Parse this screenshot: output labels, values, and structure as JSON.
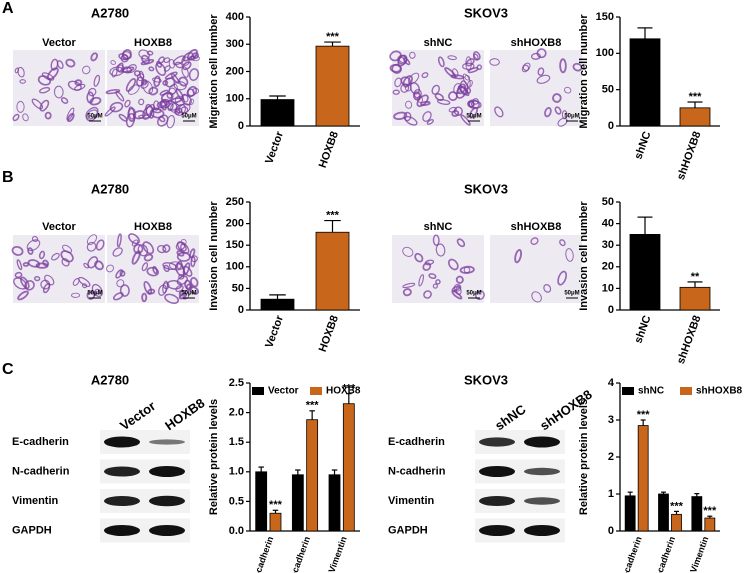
{
  "panels": [
    {
      "letter": "A",
      "groups": [
        {
          "title": "A2780",
          "images": [
            {
              "label": "Vector",
              "scale": "50μM"
            },
            {
              "label": "HOXB8",
              "scale": "50μM"
            }
          ]
        },
        {
          "title": "SKOV3",
          "images": [
            {
              "label": "shNC",
              "scale": "50μM"
            },
            {
              "label": "shHOXB8",
              "scale": "50μM"
            }
          ]
        }
      ]
    },
    {
      "letter": "B",
      "groups": [
        {
          "title": "A2780",
          "images": [
            {
              "label": "Vector",
              "scale": "50μM"
            },
            {
              "label": "HOXB8",
              "scale": "50μM"
            }
          ]
        },
        {
          "title": "SKOV3",
          "images": [
            {
              "label": "shNC",
              "scale": "50μM"
            },
            {
              "label": "shHOXB8",
              "scale": "50μM"
            }
          ]
        }
      ]
    },
    {
      "letter": "C",
      "groups": [
        {
          "title": "A2780",
          "blot": {
            "lanes": [
              "Vector",
              "HOXB8"
            ],
            "proteins": [
              "E-cadherin",
              "N-cadherin",
              "Vimentin",
              "GAPDH"
            ]
          }
        },
        {
          "title": "SKOV3",
          "blot": {
            "lanes": [
              "shNC",
              "shHOXB8"
            ],
            "proteins": [
              "E-cadherin",
              "N-cadherin",
              "Vimentin",
              "GAPDH"
            ]
          }
        }
      ]
    }
  ],
  "chart_data": [
    {
      "type": "bar",
      "ylabel": "Migration cell number",
      "categories": [
        "Vector",
        "HOXB8"
      ],
      "values": [
        97,
        293
      ],
      "errors": [
        13,
        15
      ],
      "annotations": [
        null,
        "***"
      ],
      "colors": [
        "#000000",
        "#c8671b"
      ],
      "ylim": [
        0,
        400
      ],
      "yticks": [
        0,
        100,
        200,
        300,
        400
      ]
    },
    {
      "type": "bar",
      "ylabel": "Migration cell number",
      "categories": [
        "shNC",
        "shHOXB8"
      ],
      "values": [
        120,
        25
      ],
      "errors": [
        15,
        8
      ],
      "annotations": [
        null,
        "***"
      ],
      "colors": [
        "#000000",
        "#c8671b"
      ],
      "ylim": [
        0,
        150
      ],
      "yticks": [
        0,
        50,
        100,
        150
      ]
    },
    {
      "type": "bar",
      "ylabel": "Invasion cell number",
      "categories": [
        "Vector",
        "HOXB8"
      ],
      "values": [
        25,
        180
      ],
      "errors": [
        10,
        27
      ],
      "annotations": [
        null,
        "***"
      ],
      "colors": [
        "#000000",
        "#c8671b"
      ],
      "ylim": [
        0,
        250
      ],
      "yticks": [
        0,
        50,
        100,
        150,
        200,
        250
      ]
    },
    {
      "type": "bar",
      "ylabel": "Invasion cell number",
      "categories": [
        "shNC",
        "shHOXB8"
      ],
      "values": [
        35,
        10.5
      ],
      "errors": [
        8,
        2.5
      ],
      "annotations": [
        null,
        "**"
      ],
      "colors": [
        "#000000",
        "#c8671b"
      ],
      "ylim": [
        0,
        50
      ],
      "yticks": [
        0,
        10,
        20,
        30,
        40,
        50
      ]
    },
    {
      "type": "grouped_bar",
      "ylabel": "Relative protein levels",
      "categories": [
        "E-cadherin",
        "N-cadherin",
        "Vimentin"
      ],
      "series": [
        {
          "name": "Vector",
          "color": "#000000",
          "values": [
            1.0,
            0.95,
            0.95
          ],
          "errors": [
            0.08,
            0.08,
            0.08
          ],
          "annotations": [
            null,
            null,
            null
          ]
        },
        {
          "name": "HOXB8",
          "color": "#c8671b",
          "values": [
            0.3,
            1.88,
            2.15
          ],
          "errors": [
            0.05,
            0.15,
            0.17
          ],
          "annotations": [
            "***",
            "***",
            "***"
          ]
        }
      ],
      "ylim": [
        0,
        2.5
      ],
      "yticks": [
        {
          "value": 0,
          "label": "0.0"
        },
        0.5,
        {
          "value": 1,
          "label": "1.0"
        },
        1.5,
        {
          "value": 2,
          "label": "2.0"
        },
        2.5
      ]
    },
    {
      "type": "grouped_bar",
      "ylabel": "Relative protein levels",
      "categories": [
        "E-cadherin",
        "N-cadherin",
        "Vimentin"
      ],
      "series": [
        {
          "name": "shNC",
          "color": "#000000",
          "values": [
            0.95,
            1.0,
            0.93
          ],
          "errors": [
            0.1,
            0.05,
            0.08
          ],
          "annotations": [
            null,
            null,
            null
          ]
        },
        {
          "name": "shHOXB8",
          "color": "#c8671b",
          "values": [
            2.85,
            0.45,
            0.35
          ],
          "errors": [
            0.15,
            0.08,
            0.05
          ],
          "annotations": [
            "***",
            "***",
            "***"
          ]
        }
      ],
      "ylim": [
        0,
        4
      ],
      "yticks": [
        0,
        1,
        2,
        3,
        4
      ]
    }
  ]
}
